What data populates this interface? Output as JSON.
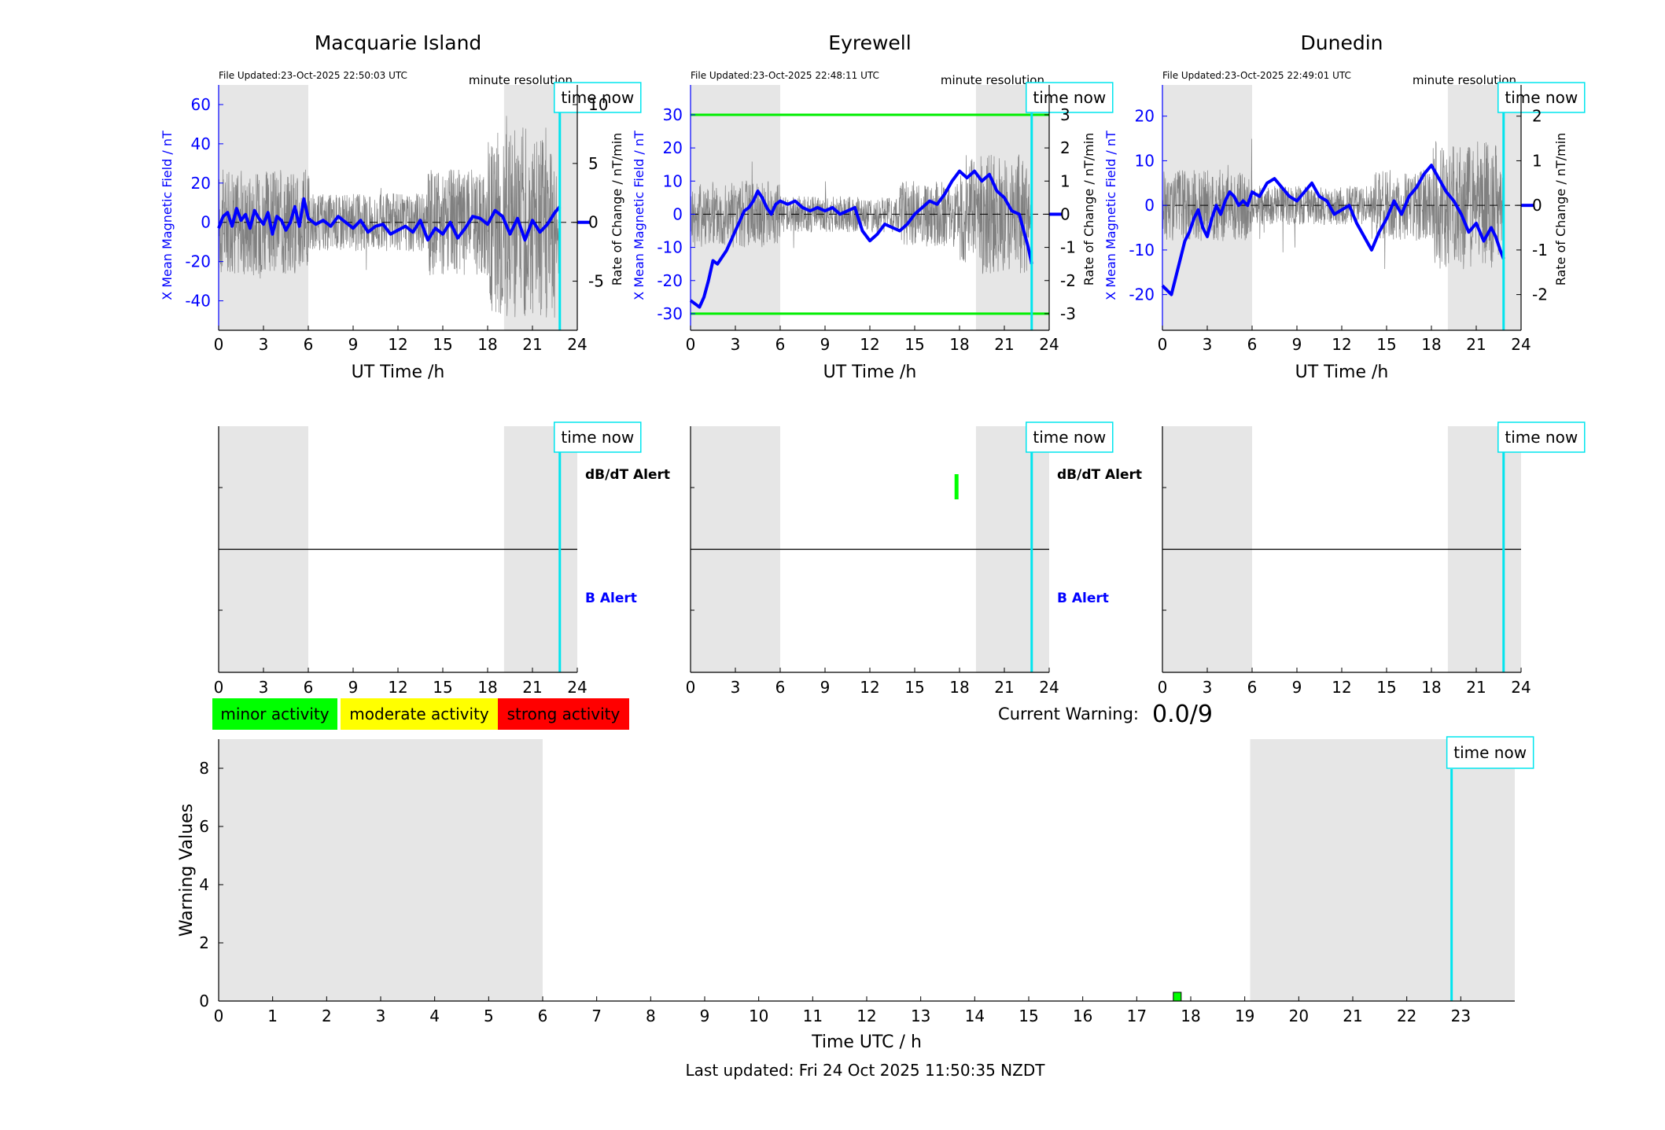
{
  "colors": {
    "x_series": "#0000ff",
    "rate_series": "#808080",
    "night_shade": "#e6e6e6",
    "time_now": "#00e5ee",
    "threshold": "#00ee00",
    "minor": "#00ff00",
    "moderate": "#ffff00",
    "strong": "#ff0000",
    "b_alert": "#0000ff",
    "dbdt_alert": "#000000",
    "warning_bar": "#00ee00"
  },
  "labels": {
    "x_axis": "UT Time /h",
    "left_y": "X Mean Magnetic Field / nT",
    "right_y": "Rate of Change / nT/min",
    "resolution": "minute resolution",
    "time_now": "time now",
    "dbdt_alert": "dB/dT Alert",
    "b_alert": "B Alert",
    "current_warning_label": "Current Warning:",
    "current_warning_value": "0.0/9",
    "legend_minor": "minor activity",
    "legend_moderate": "moderate activity",
    "legend_strong": "strong activity",
    "bottom_xlabel": "Time UTC / h",
    "bottom_ylabel": "Warning Values",
    "last_updated": "Last updated: Fri 24 Oct 2025 11:50:35 NZDT"
  },
  "chart_data": [
    {
      "type": "line",
      "station": "Macquarie Island",
      "file_updated": "File Updated:23-Oct-2025 22:50:03 UTC",
      "xlim": [
        0,
        24
      ],
      "xticks": [
        0,
        3,
        6,
        9,
        12,
        15,
        18,
        21,
        24
      ],
      "ylim_left": [
        -55,
        70
      ],
      "yticks_left": [
        -40,
        -20,
        0,
        20,
        40,
        60
      ],
      "ylim_right": [
        -9.17,
        11.67
      ],
      "yticks_right": [
        -5,
        0,
        5,
        10
      ],
      "night_shading": [
        [
          0,
          6
        ],
        [
          19.1,
          24
        ]
      ],
      "time_now": 22.83,
      "thresholds": [],
      "x_series": {
        "x": [
          0,
          0.3,
          0.6,
          0.9,
          1.2,
          1.5,
          1.8,
          2.1,
          2.4,
          2.7,
          3.0,
          3.3,
          3.6,
          3.9,
          4.2,
          4.5,
          4.8,
          5.1,
          5.4,
          5.7,
          6.0,
          6.5,
          7.0,
          7.5,
          8.0,
          8.5,
          9.0,
          9.5,
          10.0,
          10.5,
          11.0,
          11.5,
          12.0,
          12.5,
          13.0,
          13.5,
          14.0,
          14.5,
          15.0,
          15.5,
          16.0,
          16.5,
          17.0,
          17.5,
          18.0,
          18.5,
          19.0,
          19.5,
          20.0,
          20.5,
          21.0,
          21.5,
          22.0,
          22.5,
          22.83
        ],
        "y": [
          -3,
          3,
          5,
          -2,
          7,
          1,
          4,
          -3,
          6,
          2,
          -1,
          5,
          -6,
          3,
          1,
          -4,
          0,
          8,
          -2,
          12,
          2,
          -1,
          1,
          -2,
          3,
          0,
          -3,
          1,
          -5,
          -2,
          -1,
          -6,
          -4,
          -2,
          -5,
          1,
          -9,
          -3,
          -6,
          0,
          -8,
          -3,
          3,
          2,
          -1,
          6,
          3,
          -6,
          2,
          -9,
          1,
          -5,
          -1,
          5,
          8
        ]
      },
      "rate_envelope_nT_per_min": [
        -4.5,
        4.5
      ]
    },
    {
      "type": "line",
      "station": "Eyrewell",
      "file_updated": "File Updated:23-Oct-2025 22:48:11 UTC",
      "xlim": [
        0,
        24
      ],
      "xticks": [
        0,
        3,
        6,
        9,
        12,
        15,
        18,
        21,
        24
      ],
      "ylim_left": [
        -35,
        39
      ],
      "yticks_left": [
        -30,
        -20,
        -10,
        0,
        10,
        20,
        30
      ],
      "ylim_right": [
        -3.5,
        3.9
      ],
      "yticks_right": [
        -3,
        -2,
        -1,
        0,
        1,
        2,
        3
      ],
      "night_shading": [
        [
          0,
          6
        ],
        [
          19.1,
          24
        ]
      ],
      "time_now": 22.83,
      "thresholds": [
        30,
        -30
      ],
      "x_series": {
        "x": [
          0,
          0.3,
          0.6,
          0.9,
          1.2,
          1.5,
          1.8,
          2.1,
          2.4,
          2.7,
          3.0,
          3.3,
          3.6,
          3.9,
          4.2,
          4.5,
          4.8,
          5.1,
          5.4,
          5.7,
          6.0,
          6.5,
          7.0,
          7.5,
          8.0,
          8.5,
          9.0,
          9.5,
          10.0,
          10.5,
          11.0,
          11.5,
          12.0,
          12.5,
          13.0,
          13.5,
          14.0,
          14.5,
          15.0,
          15.5,
          16.0,
          16.5,
          17.0,
          17.5,
          18.0,
          18.5,
          19.0,
          19.5,
          20.0,
          20.5,
          21.0,
          21.5,
          22.0,
          22.3,
          22.6,
          22.83
        ],
        "y": [
          -26,
          -27,
          -28,
          -25,
          -20,
          -14,
          -15,
          -13,
          -11,
          -8,
          -5,
          -2,
          1,
          2,
          4,
          7,
          5,
          2,
          0,
          3,
          4,
          3,
          4,
          2,
          1,
          2,
          1,
          2,
          0,
          1,
          2,
          -5,
          -8,
          -6,
          -3,
          -4,
          -5,
          -3,
          0,
          2,
          4,
          3,
          6,
          10,
          13,
          11,
          13,
          10,
          12,
          7,
          5,
          1,
          0,
          -5,
          -10,
          -15
        ]
      },
      "rate_envelope_nT_per_min": [
        -1.0,
        1.0
      ]
    },
    {
      "type": "line",
      "station": "Dunedin",
      "file_updated": "File Updated:23-Oct-2025 22:49:01 UTC",
      "xlim": [
        0,
        24
      ],
      "xticks": [
        0,
        3,
        6,
        9,
        12,
        15,
        18,
        21,
        24
      ],
      "ylim_left": [
        -28,
        27
      ],
      "yticks_left": [
        -20,
        -10,
        0,
        10,
        20
      ],
      "ylim_right": [
        -2.8,
        2.7
      ],
      "yticks_right": [
        -2,
        -1,
        0,
        1,
        2
      ],
      "night_shading": [
        [
          0,
          6
        ],
        [
          19.1,
          24
        ]
      ],
      "time_now": 22.83,
      "thresholds": [],
      "x_series": {
        "x": [
          0,
          0.3,
          0.6,
          0.9,
          1.2,
          1.5,
          1.8,
          2.1,
          2.4,
          2.7,
          3.0,
          3.3,
          3.6,
          3.9,
          4.2,
          4.5,
          4.8,
          5.1,
          5.4,
          5.7,
          6.0,
          6.5,
          7.0,
          7.5,
          8.0,
          8.5,
          9.0,
          9.5,
          10.0,
          10.5,
          11.0,
          11.5,
          12.0,
          12.5,
          13.0,
          13.5,
          14.0,
          14.5,
          15.0,
          15.5,
          16.0,
          16.5,
          17.0,
          17.5,
          18.0,
          18.5,
          19.0,
          19.5,
          20.0,
          20.5,
          21.0,
          21.5,
          22.0,
          22.3,
          22.6,
          22.83
        ],
        "y": [
          -18,
          -19,
          -20,
          -16,
          -12,
          -8,
          -6,
          -3,
          -1,
          -5,
          -7,
          -3,
          0,
          -2,
          1,
          3,
          2,
          0,
          1,
          0,
          3,
          2,
          5,
          6,
          4,
          2,
          1,
          3,
          5,
          2,
          1,
          -2,
          -1,
          0,
          -4,
          -7,
          -10,
          -6,
          -3,
          1,
          -2,
          2,
          4,
          7,
          9,
          6,
          3,
          1,
          -2,
          -6,
          -4,
          -8,
          -5,
          -7,
          -10,
          -12
        ]
      },
      "rate_envelope_nT_per_min": [
        -0.8,
        0.8
      ]
    },
    {
      "type": "bar",
      "station": "Macquarie Island",
      "panel": "alerts",
      "xlim": [
        0,
        24
      ],
      "xticks": [
        0,
        3,
        6,
        9,
        12,
        15,
        18,
        21,
        24
      ],
      "night_shading": [
        [
          0,
          6
        ],
        [
          19.1,
          24
        ]
      ],
      "time_now": 22.83,
      "dbdt_alerts": [],
      "b_alerts": []
    },
    {
      "type": "bar",
      "station": "Eyrewell",
      "panel": "alerts",
      "xlim": [
        0,
        24
      ],
      "xticks": [
        0,
        3,
        6,
        9,
        12,
        15,
        18,
        21,
        24
      ],
      "night_shading": [
        [
          0,
          6
        ],
        [
          19.1,
          24
        ]
      ],
      "time_now": 22.83,
      "dbdt_alerts": [
        {
          "x": 17.8,
          "level": "minor"
        }
      ],
      "b_alerts": []
    },
    {
      "type": "bar",
      "station": "Dunedin",
      "panel": "alerts",
      "xlim": [
        0,
        24
      ],
      "xticks": [
        0,
        3,
        6,
        9,
        12,
        15,
        18,
        21,
        24
      ],
      "night_shading": [
        [
          0,
          6
        ],
        [
          19.1,
          24
        ]
      ],
      "time_now": 22.83,
      "dbdt_alerts": [],
      "b_alerts": []
    },
    {
      "type": "bar",
      "panel": "warning",
      "xlim": [
        0,
        24
      ],
      "xticks": [
        0,
        1,
        2,
        3,
        4,
        5,
        6,
        7,
        8,
        9,
        10,
        11,
        12,
        13,
        14,
        15,
        16,
        17,
        18,
        19,
        20,
        21,
        22,
        23
      ],
      "ylim": [
        0,
        9
      ],
      "yticks": [
        0,
        2,
        4,
        6,
        8
      ],
      "night_shading": [
        [
          0,
          6
        ],
        [
          19.1,
          24
        ]
      ],
      "time_now": 22.83,
      "bars": [
        {
          "x": 17.75,
          "value": 0.3,
          "level": "minor"
        }
      ]
    }
  ]
}
